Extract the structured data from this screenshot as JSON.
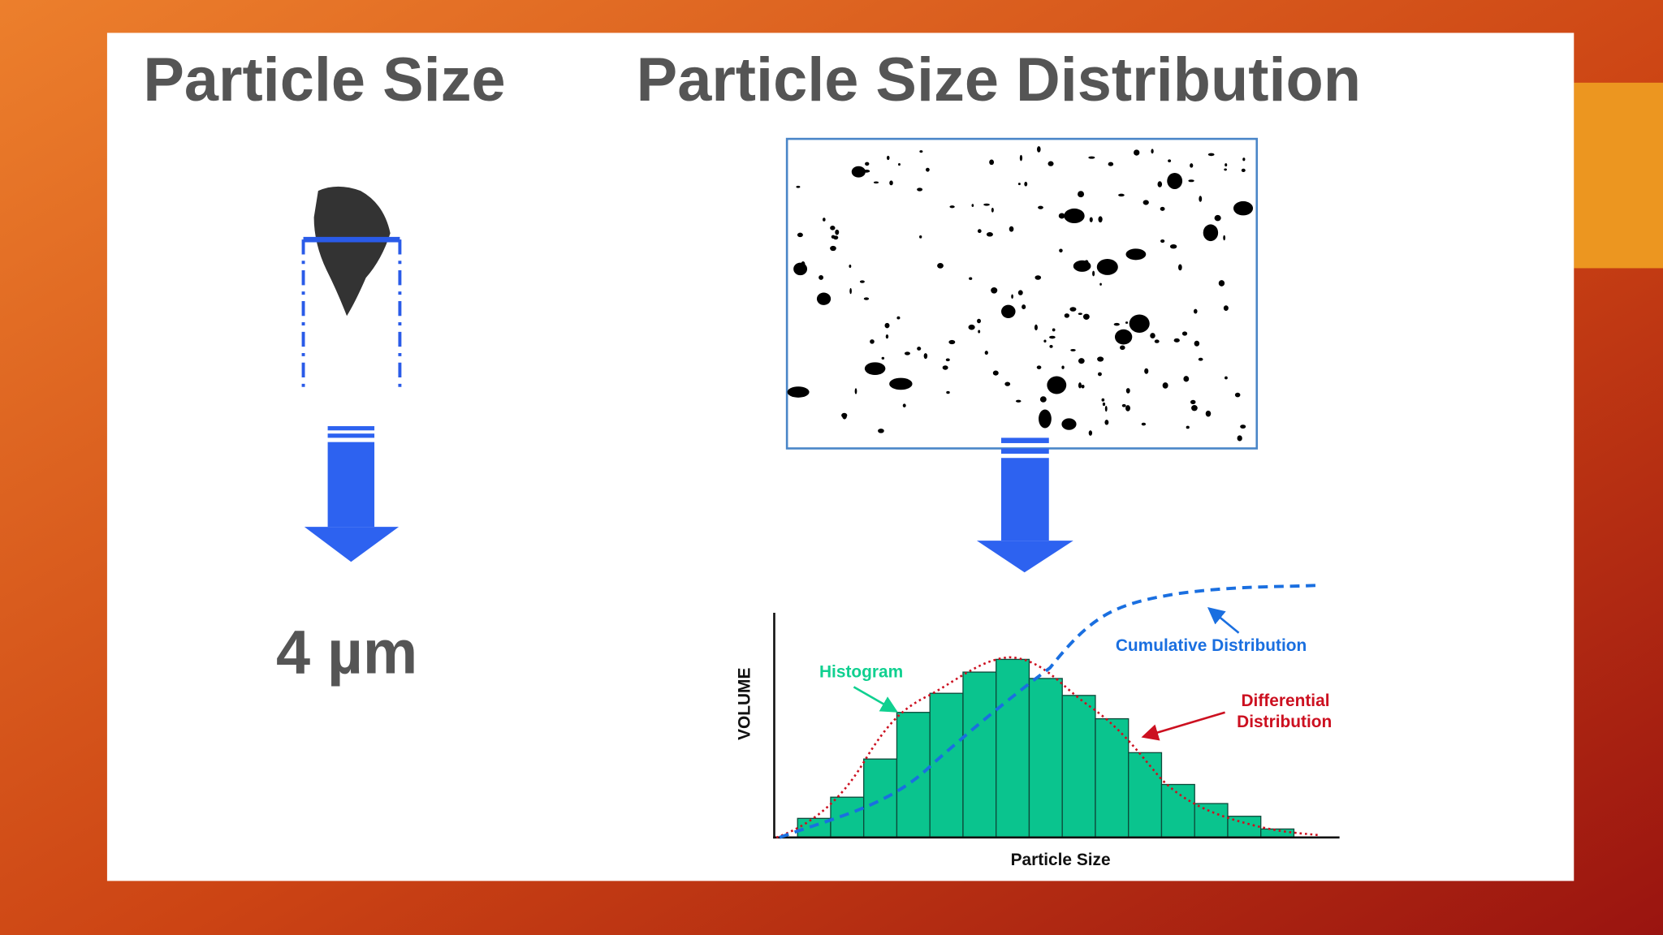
{
  "header": {
    "left_title": "Particle Size",
    "right_title": "Particle Size Distribution"
  },
  "left": {
    "measurement": "4 µm"
  },
  "right": {
    "chart": {
      "histogram_label": "Histogram",
      "cumulative_label": "Cumulative Distribution",
      "differential_label": [
        "Differential",
        "Distribution"
      ],
      "y_axis_label": "VOLUME",
      "x_axis_label": "Particle Size"
    }
  }
}
